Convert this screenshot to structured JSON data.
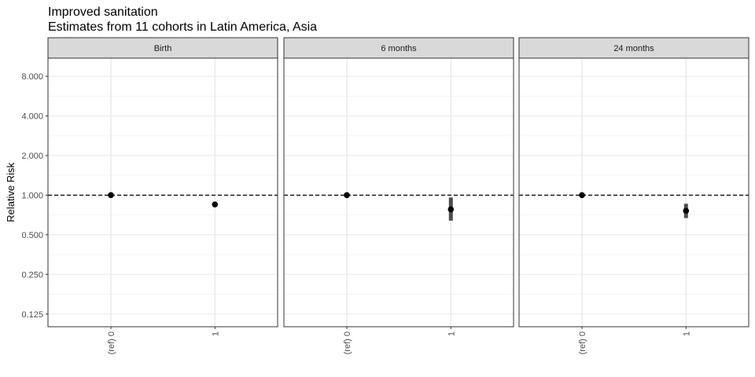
{
  "chart_data": {
    "type": "scatter",
    "title": "Improved sanitation",
    "subtitle": "Estimates from 11 cohorts in Latin America, Asia",
    "xlabel": "",
    "ylabel": "Relative Risk",
    "y_scale": "log2",
    "ylim": [
      0.1,
      11
    ],
    "y_ticks": [
      0.125,
      0.25,
      0.5,
      1,
      2,
      4,
      8
    ],
    "y_tick_labels": [
      "0.125",
      "0.250",
      "0.500",
      "1.000",
      "2.000",
      "4.000",
      "8.000"
    ],
    "categories": [
      "(ref) 0",
      "1"
    ],
    "reference_line": 1,
    "grid": true,
    "panels": [
      {
        "name": "Birth",
        "points": [
          {
            "x": "(ref) 0",
            "y": 1.0,
            "lower": null,
            "upper": null
          },
          {
            "x": "1",
            "y": 0.85,
            "lower": null,
            "upper": null
          }
        ]
      },
      {
        "name": "6 months",
        "points": [
          {
            "x": "(ref) 0",
            "y": 1.0,
            "lower": null,
            "upper": null
          },
          {
            "x": "1",
            "y": 0.78,
            "lower": 0.64,
            "upper": 0.96
          }
        ]
      },
      {
        "name": "24 months",
        "points": [
          {
            "x": "(ref) 0",
            "y": 1.0,
            "lower": null,
            "upper": null
          },
          {
            "x": "1",
            "y": 0.76,
            "lower": 0.67,
            "upper": 0.86
          }
        ]
      }
    ]
  },
  "colors": {
    "point": "#000000",
    "ci": "#4d4d4d",
    "strip_fill": "#d9d9d9",
    "panel_border": "#333333",
    "grid_major": "#ebebeb",
    "grid_minor": "#f5f5f5",
    "reference_line": "#000000"
  }
}
